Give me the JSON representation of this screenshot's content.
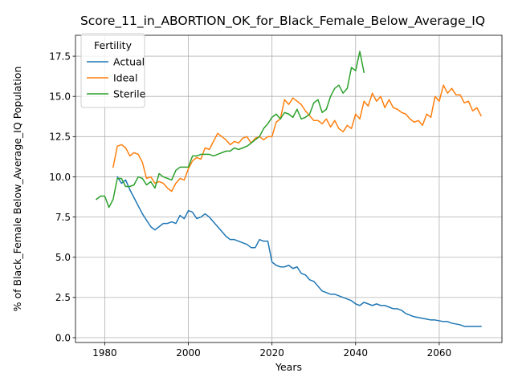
{
  "chart_data": {
    "type": "line",
    "title": "Score_11_in_ABORTION_OK_for_Black_Female_Below_Average_IQ",
    "xlabel": "Years",
    "ylabel": "% of Black_Female Below_Average_IQ Population",
    "xlim": [
      1973,
      2075
    ],
    "ylim": [
      -0.3,
      18.8
    ],
    "xticks": [
      1980,
      2000,
      2020,
      2040,
      2060
    ],
    "yticks": [
      0.0,
      2.5,
      5.0,
      7.5,
      10.0,
      12.5,
      15.0,
      17.5
    ],
    "ytick_labels": [
      "0.0",
      "2.5",
      "5.0",
      "7.5",
      "10.0",
      "12.5",
      "15.0",
      "17.5"
    ],
    "grid": true,
    "legend": {
      "title": "Fertility",
      "position": "top-left"
    },
    "series": [
      {
        "name": "Actual",
        "color": "#1f77b4",
        "x": [
          1983,
          1984,
          1985,
          1986,
          1987,
          1988,
          1989,
          1990,
          1991,
          1992,
          1993,
          1994,
          1995,
          1996,
          1997,
          1998,
          1999,
          2000,
          2001,
          2002,
          2003,
          2004,
          2005,
          2006,
          2007,
          2008,
          2009,
          2010,
          2011,
          2012,
          2013,
          2014,
          2015,
          2016,
          2017,
          2018,
          2019,
          2020,
          2021,
          2022,
          2023,
          2024,
          2025,
          2026,
          2027,
          2028,
          2029,
          2030,
          2031,
          2032,
          2033,
          2034,
          2035,
          2036,
          2037,
          2038,
          2039,
          2040,
          2041,
          2042,
          2043,
          2044,
          2045,
          2046,
          2047,
          2048,
          2049,
          2050,
          2051,
          2052,
          2053,
          2054,
          2055,
          2056,
          2057,
          2058,
          2059,
          2060,
          2061,
          2062,
          2063,
          2064,
          2065,
          2066,
          2067,
          2068,
          2069,
          2070
        ],
        "values": [
          10.0,
          9.6,
          9.8,
          9.2,
          8.7,
          8.2,
          7.7,
          7.3,
          6.9,
          6.7,
          6.9,
          7.1,
          7.1,
          7.2,
          7.1,
          7.6,
          7.4,
          7.9,
          7.8,
          7.4,
          7.5,
          7.7,
          7.5,
          7.2,
          6.9,
          6.6,
          6.3,
          6.1,
          6.1,
          6.0,
          5.9,
          5.8,
          5.6,
          5.6,
          6.1,
          6.0,
          6.0,
          4.7,
          4.5,
          4.4,
          4.4,
          4.5,
          4.3,
          4.4,
          4.0,
          3.9,
          3.6,
          3.5,
          3.2,
          2.9,
          2.8,
          2.7,
          2.7,
          2.6,
          2.5,
          2.4,
          2.3,
          2.1,
          2.0,
          2.2,
          2.1,
          2.0,
          2.1,
          2.0,
          2.0,
          1.9,
          1.8,
          1.8,
          1.7,
          1.5,
          1.4,
          1.3,
          1.25,
          1.2,
          1.15,
          1.1,
          1.1,
          1.05,
          1.0,
          1.0,
          0.9,
          0.85,
          0.8,
          0.7,
          0.7,
          0.7,
          0.7,
          0.7
        ]
      },
      {
        "name": "Ideal",
        "color": "#ff7f0e",
        "x": [
          1982,
          1983,
          1984,
          1985,
          1986,
          1987,
          1988,
          1989,
          1990,
          1991,
          1992,
          1993,
          1994,
          1995,
          1996,
          1997,
          1998,
          1999,
          2000,
          2001,
          2002,
          2003,
          2004,
          2005,
          2006,
          2007,
          2008,
          2009,
          2010,
          2011,
          2012,
          2013,
          2014,
          2015,
          2016,
          2017,
          2018,
          2019,
          2020,
          2021,
          2022,
          2023,
          2024,
          2025,
          2026,
          2027,
          2028,
          2029,
          2030,
          2031,
          2032,
          2033,
          2034,
          2035,
          2036,
          2037,
          2038,
          2039,
          2040,
          2041,
          2042,
          2043,
          2044,
          2045,
          2046,
          2047,
          2048,
          2049,
          2050,
          2051,
          2052,
          2053,
          2054,
          2055,
          2056,
          2057,
          2058,
          2059,
          2060,
          2061,
          2062,
          2063,
          2064,
          2065,
          2066,
          2067,
          2068,
          2069,
          2070
        ],
        "values": [
          10.6,
          11.9,
          12.0,
          11.8,
          11.3,
          11.5,
          11.4,
          10.9,
          9.9,
          10.0,
          9.6,
          9.7,
          9.6,
          9.3,
          9.1,
          9.6,
          9.9,
          9.8,
          10.5,
          11.0,
          11.2,
          11.1,
          11.8,
          11.7,
          12.2,
          12.7,
          12.5,
          12.3,
          12.0,
          12.2,
          12.1,
          12.4,
          12.5,
          12.1,
          12.4,
          12.5,
          12.3,
          12.5,
          12.5,
          13.4,
          13.6,
          14.8,
          14.5,
          14.9,
          14.7,
          14.5,
          14.1,
          13.8,
          13.5,
          13.5,
          13.3,
          13.6,
          13.1,
          13.5,
          13.0,
          12.8,
          13.2,
          13.0,
          13.9,
          13.6,
          14.7,
          14.4,
          15.2,
          14.7,
          15.0,
          14.3,
          14.8,
          14.3,
          14.2,
          14.0,
          13.9,
          13.6,
          13.4,
          13.5,
          13.2,
          13.9,
          13.7,
          15.0,
          14.7,
          15.7,
          15.2,
          15.5,
          15.1,
          15.1,
          14.6,
          14.7,
          14.1,
          14.3,
          13.8
        ]
      },
      {
        "name": "Sterile",
        "color": "#2ca02c",
        "x": [
          1978,
          1979,
          1980,
          1981,
          1982,
          1983,
          1984,
          1985,
          1986,
          1987,
          1988,
          1989,
          1990,
          1991,
          1992,
          1993,
          1994,
          1995,
          1996,
          1997,
          1998,
          1999,
          2000,
          2001,
          2002,
          2003,
          2004,
          2005,
          2006,
          2007,
          2008,
          2009,
          2010,
          2011,
          2012,
          2013,
          2014,
          2015,
          2016,
          2017,
          2018,
          2019,
          2020,
          2021,
          2022,
          2023,
          2024,
          2025,
          2026,
          2027,
          2028,
          2029,
          2030,
          2031,
          2032,
          2033,
          2034,
          2035,
          2036,
          2037,
          2038,
          2039,
          2040,
          2041,
          2042
        ],
        "values": [
          8.6,
          8.8,
          8.8,
          8.1,
          8.6,
          9.9,
          9.9,
          9.4,
          9.4,
          9.5,
          10.0,
          9.9,
          9.5,
          9.7,
          9.3,
          10.2,
          10.0,
          9.9,
          9.8,
          10.4,
          10.6,
          10.6,
          10.6,
          11.3,
          11.3,
          11.4,
          11.4,
          11.4,
          11.3,
          11.4,
          11.5,
          11.6,
          11.6,
          11.8,
          11.7,
          11.8,
          11.9,
          12.1,
          12.3,
          12.5,
          13.0,
          13.3,
          13.7,
          13.9,
          13.6,
          14.0,
          13.9,
          13.7,
          14.2,
          13.6,
          13.7,
          13.9,
          14.6,
          14.8,
          14.0,
          14.2,
          15.0,
          15.5,
          15.7,
          15.2,
          15.5,
          16.8,
          16.6,
          17.8,
          16.5
        ]
      }
    ]
  }
}
